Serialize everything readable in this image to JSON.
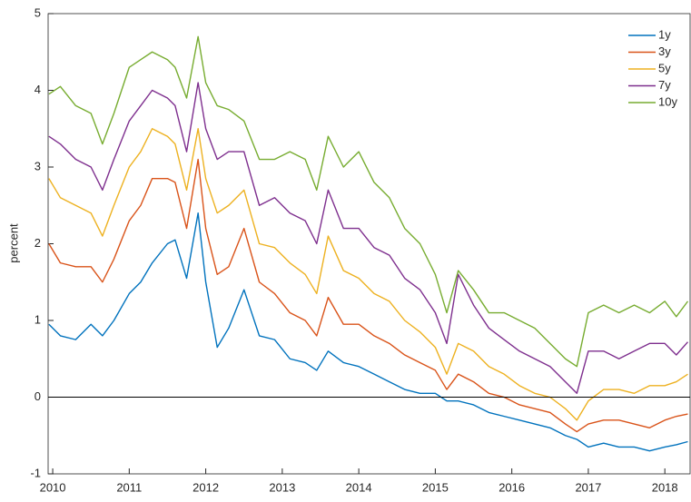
{
  "chart_data": {
    "type": "line",
    "ylabel": "percent",
    "x": [
      2009.95,
      2010.1,
      2010.3,
      2010.5,
      2010.65,
      2010.8,
      2011.0,
      2011.15,
      2011.3,
      2011.5,
      2011.6,
      2011.75,
      2011.9,
      2012.0,
      2012.15,
      2012.3,
      2012.5,
      2012.7,
      2012.9,
      2013.1,
      2013.3,
      2013.45,
      2013.6,
      2013.8,
      2014.0,
      2014.2,
      2014.4,
      2014.6,
      2014.8,
      2015.0,
      2015.15,
      2015.3,
      2015.5,
      2015.7,
      2015.9,
      2016.1,
      2016.3,
      2016.5,
      2016.7,
      2016.85,
      2017.0,
      2017.2,
      2017.4,
      2017.6,
      2017.8,
      2018.0,
      2018.15,
      2018.3
    ],
    "series": [
      {
        "name": "1y",
        "color": "#0072BD",
        "values": [
          0.95,
          0.8,
          0.75,
          0.95,
          0.8,
          1.0,
          1.35,
          1.5,
          1.75,
          2.0,
          2.05,
          1.55,
          2.4,
          1.5,
          0.65,
          0.9,
          1.4,
          0.8,
          0.75,
          0.5,
          0.45,
          0.35,
          0.6,
          0.45,
          0.4,
          0.3,
          0.2,
          0.1,
          0.05,
          0.05,
          -0.05,
          -0.05,
          -0.1,
          -0.2,
          -0.25,
          -0.3,
          -0.35,
          -0.4,
          -0.5,
          -0.55,
          -0.65,
          -0.6,
          -0.65,
          -0.65,
          -0.7,
          -0.65,
          -0.62,
          -0.58
        ]
      },
      {
        "name": "3y",
        "color": "#D95319",
        "values": [
          2.0,
          1.75,
          1.7,
          1.7,
          1.5,
          1.8,
          2.3,
          2.5,
          2.85,
          2.85,
          2.8,
          2.2,
          3.1,
          2.2,
          1.6,
          1.7,
          2.2,
          1.5,
          1.35,
          1.1,
          1.0,
          0.8,
          1.3,
          0.95,
          0.95,
          0.8,
          0.7,
          0.55,
          0.45,
          0.35,
          0.1,
          0.3,
          0.2,
          0.05,
          0.0,
          -0.1,
          -0.15,
          -0.2,
          -0.35,
          -0.45,
          -0.35,
          -0.3,
          -0.3,
          -0.35,
          -0.4,
          -0.3,
          -0.25,
          -0.22
        ]
      },
      {
        "name": "5y",
        "color": "#EDB120",
        "values": [
          2.85,
          2.6,
          2.5,
          2.4,
          2.1,
          2.5,
          3.0,
          3.2,
          3.5,
          3.4,
          3.3,
          2.7,
          3.5,
          2.85,
          2.4,
          2.5,
          2.7,
          2.0,
          1.95,
          1.75,
          1.6,
          1.35,
          2.1,
          1.65,
          1.55,
          1.35,
          1.25,
          1.0,
          0.85,
          0.65,
          0.3,
          0.7,
          0.6,
          0.4,
          0.3,
          0.15,
          0.05,
          0.0,
          -0.15,
          -0.3,
          -0.05,
          0.1,
          0.1,
          0.05,
          0.15,
          0.15,
          0.2,
          0.3
        ]
      },
      {
        "name": "7y",
        "color": "#7E2F8E",
        "values": [
          3.4,
          3.3,
          3.1,
          3.0,
          2.7,
          3.1,
          3.6,
          3.8,
          4.0,
          3.9,
          3.8,
          3.2,
          4.1,
          3.5,
          3.1,
          3.2,
          3.2,
          2.5,
          2.6,
          2.4,
          2.3,
          2.0,
          2.7,
          2.2,
          2.2,
          1.95,
          1.85,
          1.55,
          1.4,
          1.1,
          0.7,
          1.6,
          1.2,
          0.9,
          0.75,
          0.6,
          0.5,
          0.4,
          0.2,
          0.05,
          0.6,
          0.6,
          0.5,
          0.6,
          0.7,
          0.7,
          0.55,
          0.72
        ]
      },
      {
        "name": "10y",
        "color": "#77AC30",
        "values": [
          3.95,
          4.05,
          3.8,
          3.7,
          3.3,
          3.7,
          4.3,
          4.4,
          4.5,
          4.4,
          4.3,
          3.9,
          4.7,
          4.1,
          3.8,
          3.75,
          3.6,
          3.1,
          3.1,
          3.2,
          3.1,
          2.7,
          3.4,
          3.0,
          3.2,
          2.8,
          2.6,
          2.2,
          2.0,
          1.6,
          1.1,
          1.65,
          1.4,
          1.1,
          1.1,
          1.0,
          0.9,
          0.7,
          0.5,
          0.4,
          1.1,
          1.2,
          1.1,
          1.2,
          1.1,
          1.25,
          1.05,
          1.25
        ]
      }
    ],
    "hline": 0,
    "xlim": [
      2009.94,
      2018.33
    ],
    "xticks": [
      2010,
      2011,
      2012,
      2013,
      2014,
      2015,
      2016,
      2017,
      2018
    ],
    "ylim": [
      -1,
      5
    ],
    "yticks": [
      -1,
      0,
      1,
      2,
      3,
      4,
      5
    ],
    "grid": false,
    "legend": "top-right"
  }
}
